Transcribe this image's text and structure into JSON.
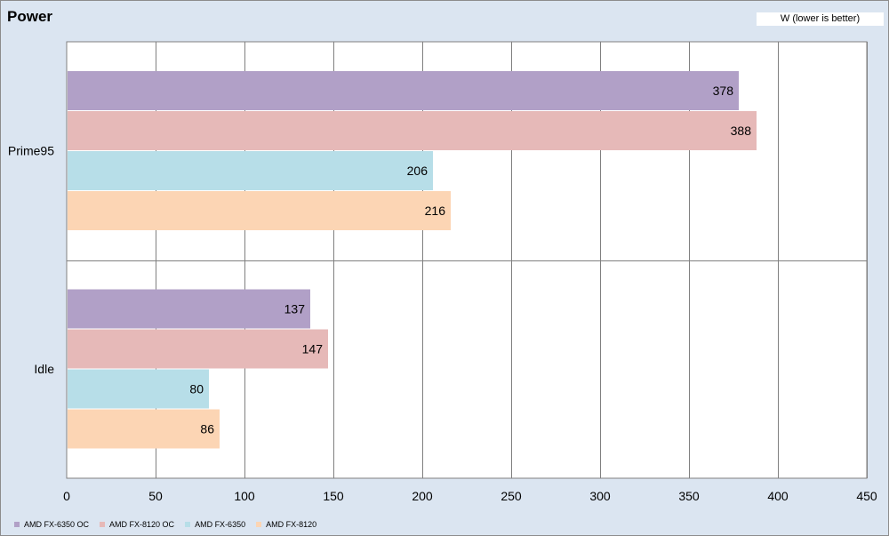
{
  "chart_data": {
    "type": "bar",
    "orientation": "horizontal",
    "title": "Power",
    "unit_label": "W (lower is better)",
    "categories": [
      "Prime95",
      "Idle"
    ],
    "series": [
      {
        "name": "AMD FX-6350 OC",
        "color": "#b1a0c7",
        "values": [
          378,
          137
        ]
      },
      {
        "name": "AMD FX-8120 OC",
        "color": "#e6b9b8",
        "values": [
          388,
          147
        ]
      },
      {
        "name": "AMD FX-6350",
        "color": "#b7dee8",
        "values": [
          206,
          80
        ]
      },
      {
        "name": "AMD FX-8120",
        "color": "#fcd5b4",
        "values": [
          216,
          86
        ]
      }
    ],
    "xlim": [
      0,
      450
    ],
    "xticks": [
      0,
      50,
      100,
      150,
      200,
      250,
      300,
      350,
      400,
      450
    ],
    "grid": true,
    "legend_position": "bottom-left"
  }
}
